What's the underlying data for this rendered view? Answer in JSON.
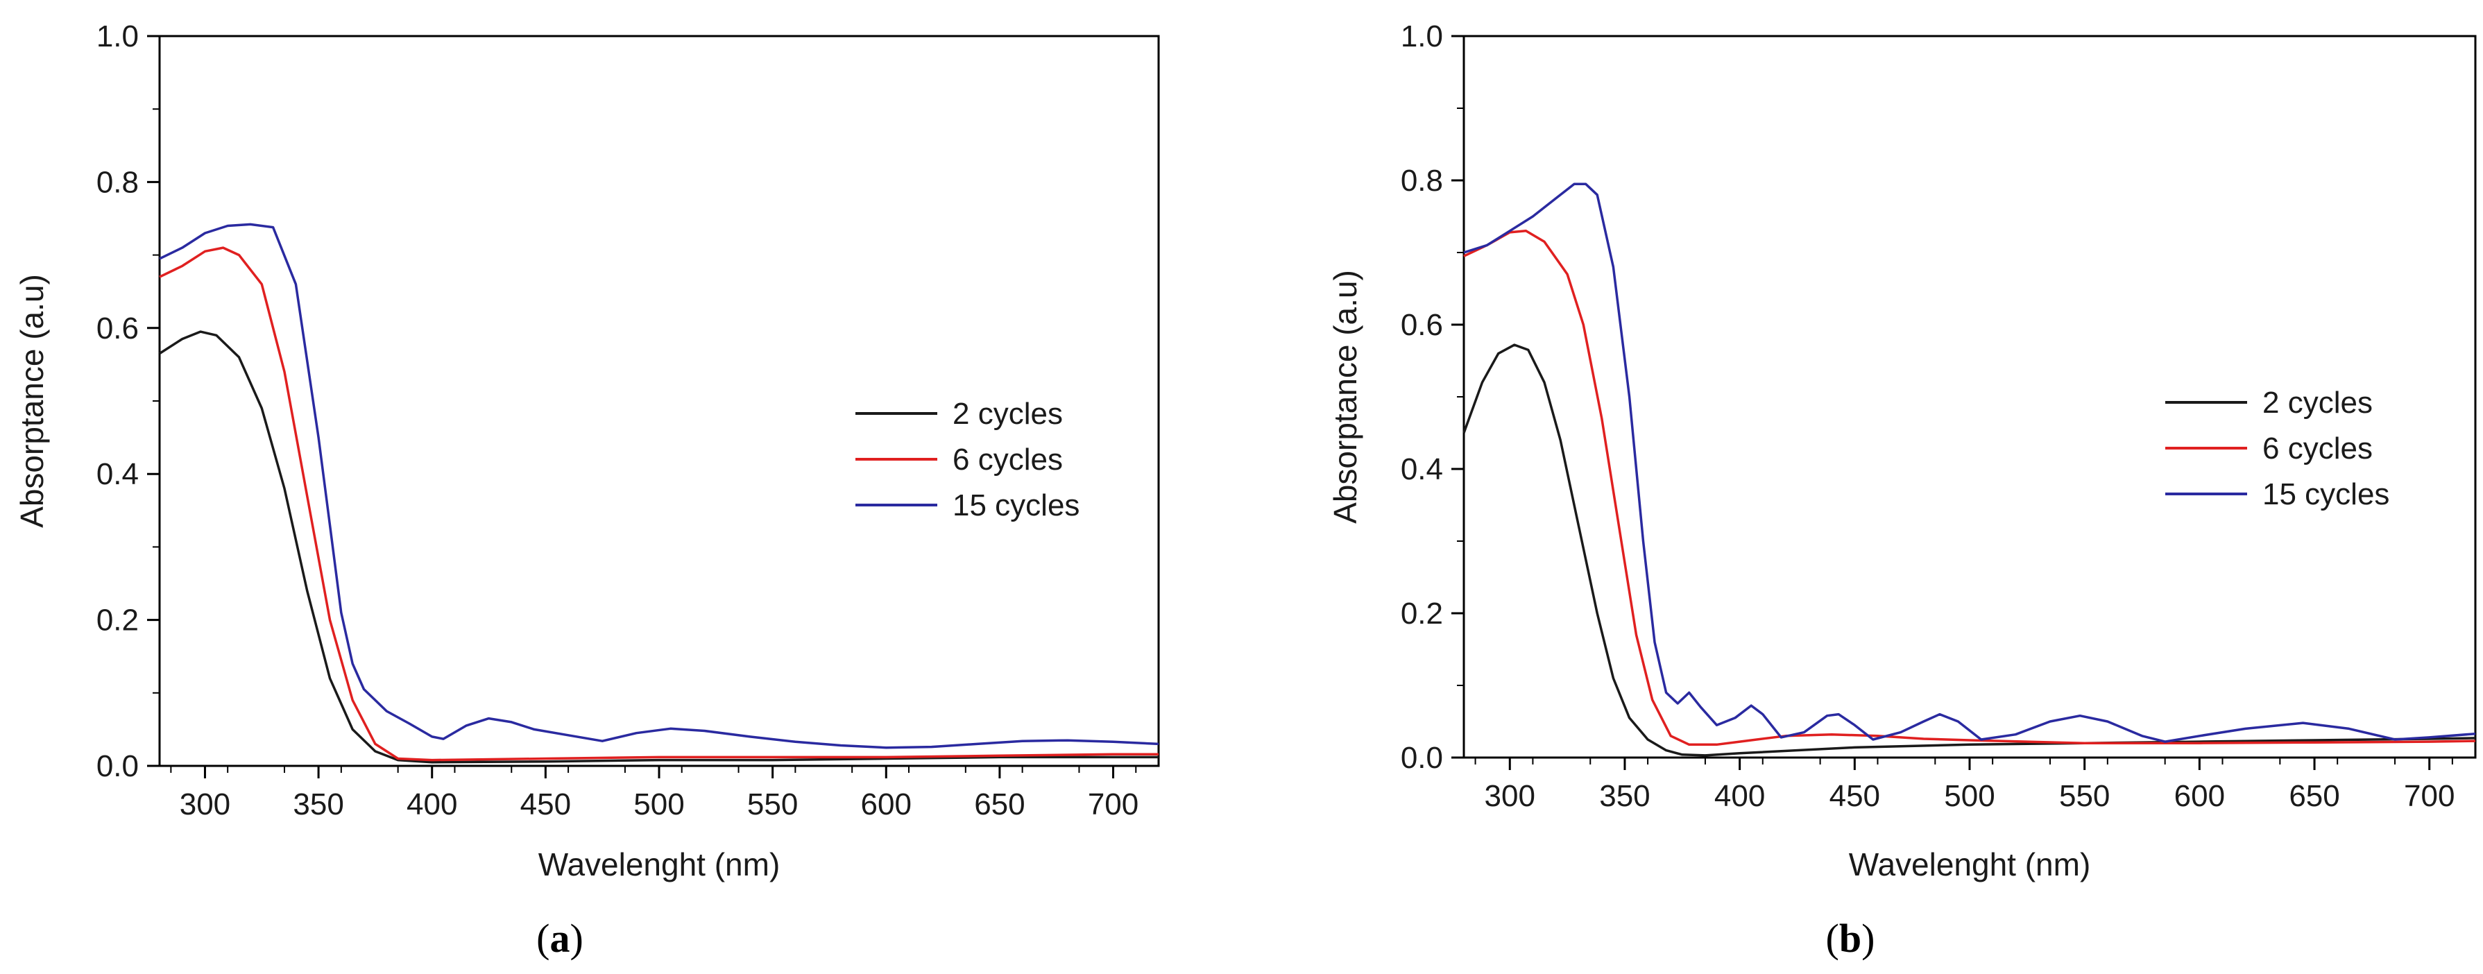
{
  "chart_data": [
    {
      "panel_label": "a",
      "type": "line",
      "xlabel": "Wavelenght (nm)",
      "ylabel": "Absorptance (a.u)",
      "xlim": [
        280,
        720
      ],
      "ylim": [
        0.0,
        1.0
      ],
      "xticks": [
        300,
        350,
        400,
        450,
        500,
        550,
        600,
        650,
        700
      ],
      "yticks": [
        0.0,
        0.2,
        0.4,
        0.6,
        0.8,
        1.0
      ],
      "xtick_labels": [
        "300",
        "350",
        "400",
        "450",
        "500",
        "550",
        "600",
        "650",
        "700"
      ],
      "ytick_labels": [
        "0.0",
        "0.2",
        "0.4",
        "0.6",
        "0.8",
        "1.0"
      ],
      "legend_position": "right",
      "series": [
        {
          "name": "2 cycles",
          "color": "#1a1a1a",
          "points": [
            [
              280,
              0.565
            ],
            [
              290,
              0.585
            ],
            [
              298,
              0.595
            ],
            [
              305,
              0.59
            ],
            [
              315,
              0.56
            ],
            [
              325,
              0.49
            ],
            [
              335,
              0.38
            ],
            [
              345,
              0.24
            ],
            [
              355,
              0.12
            ],
            [
              365,
              0.05
            ],
            [
              375,
              0.02
            ],
            [
              385,
              0.008
            ],
            [
              400,
              0.005
            ],
            [
              450,
              0.006
            ],
            [
              500,
              0.008
            ],
            [
              550,
              0.008
            ],
            [
              600,
              0.01
            ],
            [
              650,
              0.012
            ],
            [
              700,
              0.012
            ],
            [
              720,
              0.012
            ]
          ]
        },
        {
          "name": "6 cycles",
          "color": "#e02020",
          "points": [
            [
              280,
              0.67
            ],
            [
              290,
              0.685
            ],
            [
              300,
              0.705
            ],
            [
              308,
              0.71
            ],
            [
              315,
              0.7
            ],
            [
              325,
              0.66
            ],
            [
              335,
              0.54
            ],
            [
              345,
              0.37
            ],
            [
              355,
              0.2
            ],
            [
              365,
              0.09
            ],
            [
              375,
              0.03
            ],
            [
              385,
              0.01
            ],
            [
              400,
              0.008
            ],
            [
              450,
              0.01
            ],
            [
              500,
              0.012
            ],
            [
              550,
              0.012
            ],
            [
              600,
              0.012
            ],
            [
              650,
              0.014
            ],
            [
              700,
              0.016
            ],
            [
              720,
              0.016
            ]
          ]
        },
        {
          "name": "15 cycles",
          "color": "#2a2aa0",
          "points": [
            [
              280,
              0.695
            ],
            [
              290,
              0.71
            ],
            [
              300,
              0.73
            ],
            [
              310,
              0.74
            ],
            [
              320,
              0.742
            ],
            [
              330,
              0.738
            ],
            [
              340,
              0.66
            ],
            [
              350,
              0.45
            ],
            [
              355,
              0.33
            ],
            [
              360,
              0.21
            ],
            [
              365,
              0.14
            ],
            [
              370,
              0.105
            ],
            [
              380,
              0.075
            ],
            [
              390,
              0.058
            ],
            [
              400,
              0.04
            ],
            [
              405,
              0.037
            ],
            [
              415,
              0.055
            ],
            [
              425,
              0.065
            ],
            [
              435,
              0.06
            ],
            [
              445,
              0.05
            ],
            [
              460,
              0.042
            ],
            [
              475,
              0.034
            ],
            [
              490,
              0.045
            ],
            [
              505,
              0.051
            ],
            [
              520,
              0.048
            ],
            [
              540,
              0.04
            ],
            [
              560,
              0.033
            ],
            [
              580,
              0.028
            ],
            [
              600,
              0.025
            ],
            [
              620,
              0.026
            ],
            [
              640,
              0.03
            ],
            [
              660,
              0.034
            ],
            [
              680,
              0.035
            ],
            [
              700,
              0.033
            ],
            [
              720,
              0.03
            ]
          ]
        }
      ]
    },
    {
      "panel_label": "b",
      "type": "line",
      "xlabel": "Wavelenght (nm)",
      "ylabel": "Absorptance (a.u)",
      "xlim": [
        280,
        720
      ],
      "ylim": [
        0.0,
        1.0
      ],
      "xticks": [
        300,
        350,
        400,
        450,
        500,
        550,
        600,
        650,
        700
      ],
      "yticks": [
        0.0,
        0.2,
        0.4,
        0.6,
        0.8,
        1.0
      ],
      "xtick_labels": [
        "300",
        "350",
        "400",
        "450",
        "500",
        "550",
        "600",
        "650",
        "700"
      ],
      "ytick_labels": [
        "0.0",
        "0.2",
        "0.4",
        "0.6",
        "0.8",
        "1.0"
      ],
      "legend_position": "right",
      "series": [
        {
          "name": "2 cycles",
          "color": "#1a1a1a",
          "points": [
            [
              280,
              0.45
            ],
            [
              288,
              0.52
            ],
            [
              295,
              0.56
            ],
            [
              302,
              0.572
            ],
            [
              308,
              0.565
            ],
            [
              315,
              0.52
            ],
            [
              322,
              0.44
            ],
            [
              330,
              0.32
            ],
            [
              338,
              0.2
            ],
            [
              345,
              0.11
            ],
            [
              352,
              0.055
            ],
            [
              360,
              0.025
            ],
            [
              368,
              0.01
            ],
            [
              375,
              0.004
            ],
            [
              385,
              0.003
            ],
            [
              400,
              0.006
            ],
            [
              450,
              0.014
            ],
            [
              500,
              0.018
            ],
            [
              550,
              0.02
            ],
            [
              600,
              0.022
            ],
            [
              650,
              0.024
            ],
            [
              700,
              0.026
            ],
            [
              720,
              0.027
            ]
          ]
        },
        {
          "name": "6 cycles",
          "color": "#e02020",
          "points": [
            [
              280,
              0.695
            ],
            [
              290,
              0.71
            ],
            [
              300,
              0.728
            ],
            [
              307,
              0.73
            ],
            [
              315,
              0.715
            ],
            [
              325,
              0.67
            ],
            [
              332,
              0.6
            ],
            [
              340,
              0.47
            ],
            [
              348,
              0.31
            ],
            [
              355,
              0.17
            ],
            [
              362,
              0.08
            ],
            [
              370,
              0.03
            ],
            [
              378,
              0.018
            ],
            [
              390,
              0.018
            ],
            [
              400,
              0.022
            ],
            [
              420,
              0.03
            ],
            [
              440,
              0.032
            ],
            [
              460,
              0.03
            ],
            [
              480,
              0.026
            ],
            [
              500,
              0.024
            ],
            [
              550,
              0.02
            ],
            [
              600,
              0.02
            ],
            [
              650,
              0.021
            ],
            [
              700,
              0.022
            ],
            [
              720,
              0.023
            ]
          ]
        },
        {
          "name": "15 cycles",
          "color": "#2a2aa0",
          "points": [
            [
              280,
              0.7
            ],
            [
              290,
              0.71
            ],
            [
              300,
              0.73
            ],
            [
              310,
              0.75
            ],
            [
              320,
              0.775
            ],
            [
              328,
              0.795
            ],
            [
              333,
              0.795
            ],
            [
              338,
              0.78
            ],
            [
              345,
              0.68
            ],
            [
              352,
              0.5
            ],
            [
              358,
              0.3
            ],
            [
              363,
              0.16
            ],
            [
              368,
              0.09
            ],
            [
              373,
              0.075
            ],
            [
              378,
              0.09
            ],
            [
              383,
              0.07
            ],
            [
              390,
              0.045
            ],
            [
              398,
              0.055
            ],
            [
              405,
              0.072
            ],
            [
              410,
              0.06
            ],
            [
              418,
              0.028
            ],
            [
              428,
              0.035
            ],
            [
              438,
              0.058
            ],
            [
              443,
              0.06
            ],
            [
              450,
              0.045
            ],
            [
              458,
              0.025
            ],
            [
              470,
              0.035
            ],
            [
              480,
              0.05
            ],
            [
              487,
              0.06
            ],
            [
              495,
              0.05
            ],
            [
              505,
              0.025
            ],
            [
              520,
              0.032
            ],
            [
              535,
              0.05
            ],
            [
              548,
              0.058
            ],
            [
              560,
              0.05
            ],
            [
              575,
              0.03
            ],
            [
              585,
              0.022
            ],
            [
              600,
              0.03
            ],
            [
              620,
              0.04
            ],
            [
              645,
              0.048
            ],
            [
              665,
              0.04
            ],
            [
              685,
              0.025
            ],
            [
              700,
              0.028
            ],
            [
              720,
              0.033
            ]
          ]
        }
      ]
    }
  ]
}
